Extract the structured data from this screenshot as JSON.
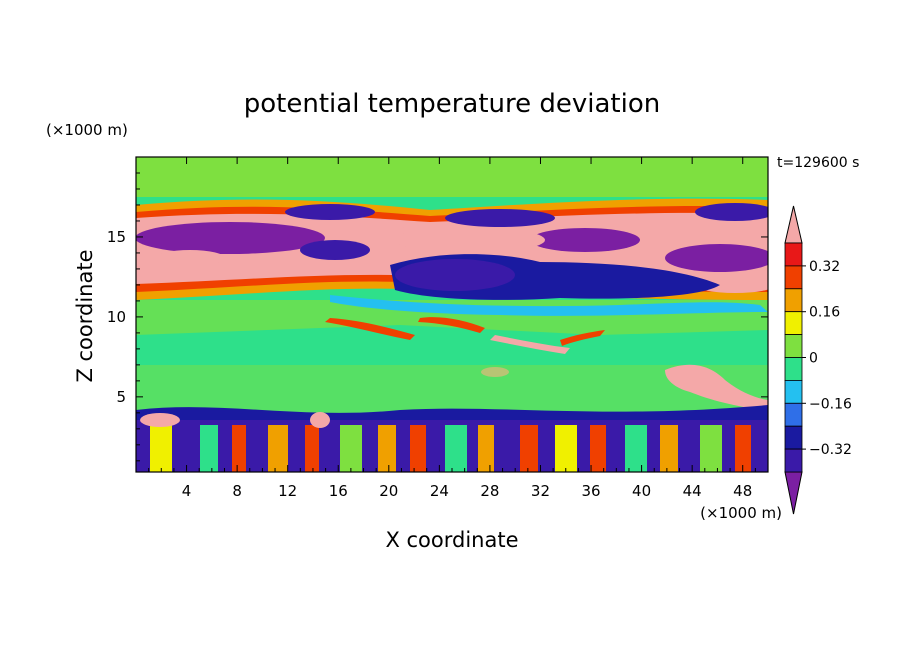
{
  "chart_data": {
    "type": "heatmap",
    "title": "potential temperature deviation",
    "xlabel": "X coordinate",
    "ylabel": "Z coordinate",
    "x_unit": "(×1000 m)",
    "y_unit": "(×1000 m)",
    "time_label": "t=129600 s",
    "xlim": [
      0,
      50
    ],
    "ylim": [
      0.3,
      20
    ],
    "x_ticks": [
      4,
      8,
      12,
      16,
      20,
      24,
      28,
      32,
      36,
      40,
      44,
      48
    ],
    "y_ticks": [
      5,
      10,
      15
    ],
    "colorbar": {
      "levels": [
        -0.4,
        -0.32,
        -0.24,
        -0.16,
        -0.08,
        0,
        0.08,
        0.16,
        0.24,
        0.32,
        0.4
      ],
      "tick_labels": [
        "0.32",
        "0.16",
        "0",
        "−0.16",
        "−0.32"
      ],
      "tick_values": [
        0.32,
        0.16,
        0,
        -0.16,
        -0.32
      ],
      "colors": [
        "#7b1fa2",
        "#3a1aa8",
        "#1a1aa0",
        "#2f6fe8",
        "#24c0f0",
        "#2ee08a",
        "#7ee040",
        "#f0f000",
        "#f0a000",
        "#f04000",
        "#e81818",
        "#f4a8a8"
      ],
      "extend": "both"
    },
    "grid": false
  }
}
